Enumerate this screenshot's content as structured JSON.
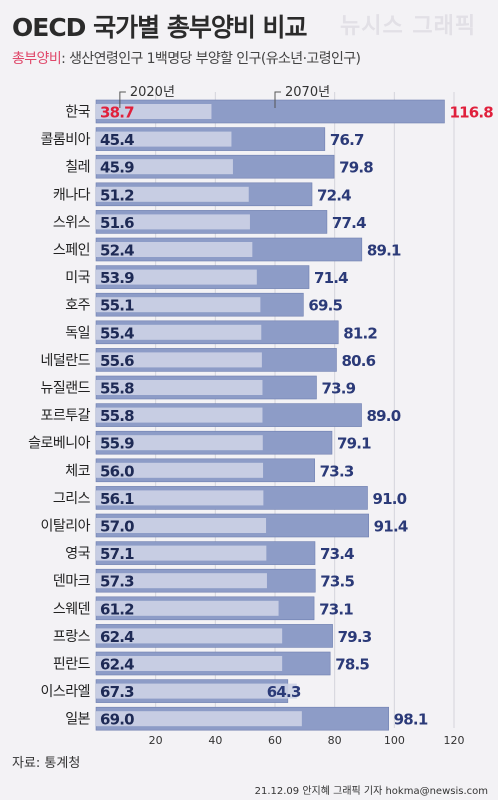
{
  "title": "OECD 국가별 총부양비 비교",
  "watermark": "뉴시스 그래픽",
  "subtitle": {
    "accent": "총부양비",
    "rest": ": 생산연령인구 1백명당 부양할 인구(유소년·고령인구)"
  },
  "source": "자료: 통계청",
  "credit": "21.12.09 안지혜 그래픽 기자 hokma@newsis.com",
  "chart_data": {
    "type": "bar",
    "orientation": "horizontal",
    "categories": [
      "한국",
      "콜롬비아",
      "칠레",
      "캐나다",
      "스위스",
      "스페인",
      "미국",
      "호주",
      "독일",
      "네덜란드",
      "뉴질랜드",
      "포르투갈",
      "슬로베니아",
      "체코",
      "그리스",
      "이탈리아",
      "영국",
      "덴마크",
      "스웨덴",
      "프랑스",
      "핀란드",
      "이스라엘",
      "일본"
    ],
    "series": [
      {
        "name": "2020년",
        "color": "#cdd3e6",
        "values": [
          38.7,
          45.4,
          45.9,
          51.2,
          51.6,
          52.4,
          53.9,
          55.1,
          55.4,
          55.6,
          55.8,
          55.8,
          55.9,
          56.0,
          56.1,
          57.0,
          57.1,
          57.3,
          61.2,
          62.4,
          62.4,
          67.3,
          69.0
        ]
      },
      {
        "name": "2070년",
        "color": "#8d9cc7",
        "values": [
          116.8,
          76.7,
          79.8,
          72.4,
          77.4,
          89.1,
          71.4,
          69.5,
          81.2,
          80.6,
          73.9,
          89.0,
          79.1,
          73.3,
          91.0,
          91.4,
          73.4,
          73.5,
          73.1,
          79.3,
          78.5,
          64.3,
          98.1
        ]
      }
    ],
    "value_labels_2020": [
      "38.7",
      "45.4",
      "45.9",
      "51.2",
      "51.6",
      "52.4",
      "53.9",
      "55.1",
      "55.4",
      "55.6",
      "55.8",
      "55.8",
      "55.9",
      "56.0",
      "56.1",
      "57.0",
      "57.1",
      "57.3",
      "61.2",
      "62.4",
      "62.4",
      "67.3",
      "69.0"
    ],
    "value_labels_2070": [
      "116.8",
      "76.7",
      "79.8",
      "72.4",
      "77.4",
      "89.1",
      "71.4",
      "69.5",
      "81.2",
      "80.6",
      "73.9",
      "89.0",
      "79.1",
      "73.3",
      "91.0",
      "91.4",
      "73.4",
      "73.5",
      "73.1",
      "79.3",
      "78.5",
      "64.3",
      "98.1"
    ],
    "highlight_color": "#e0203c",
    "highlight_category": "한국",
    "xlim": [
      0,
      120
    ],
    "xticks": [
      "20",
      "40",
      "60",
      "80",
      "100",
      "120"
    ],
    "grid": "vertical"
  }
}
